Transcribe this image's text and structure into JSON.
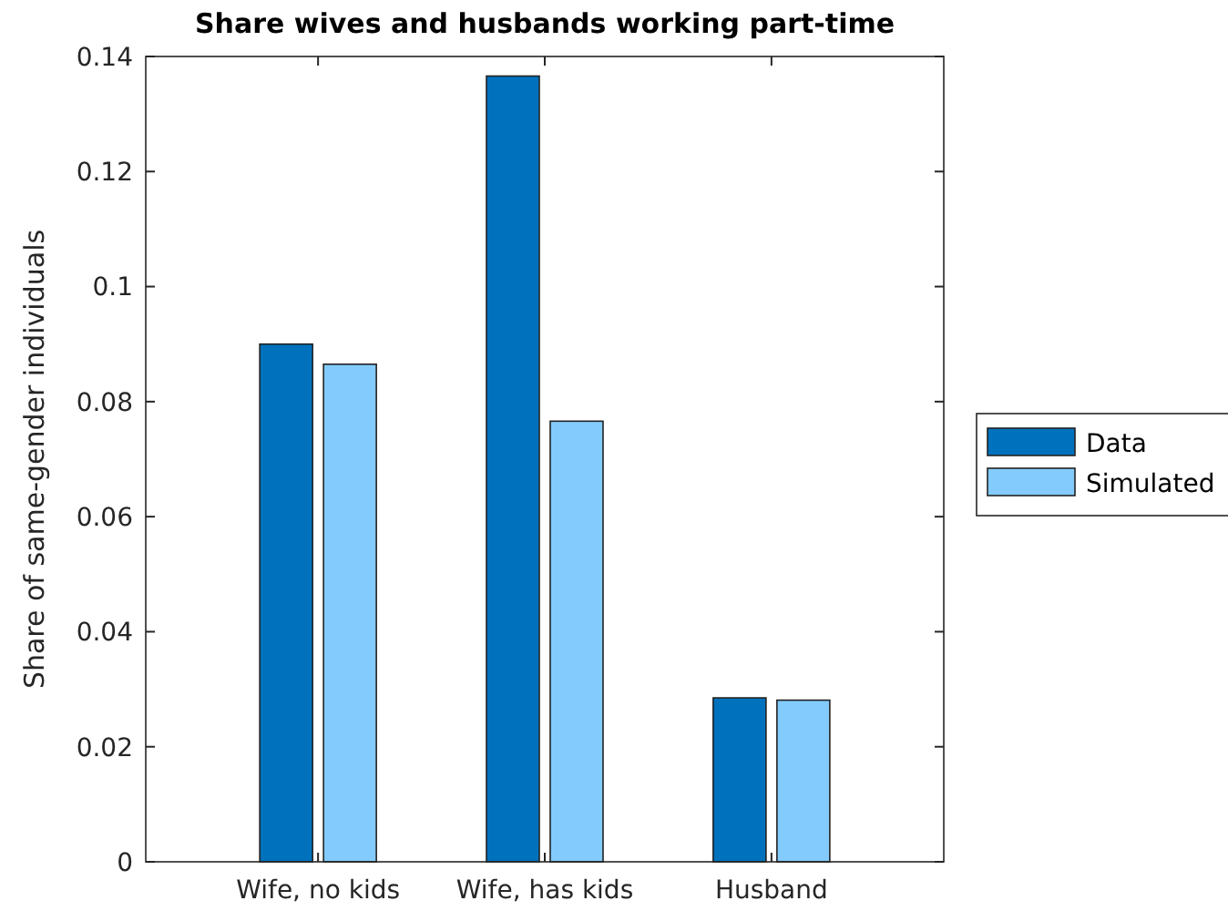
{
  "chart_data": {
    "type": "bar",
    "title": "Share wives and husbands working part-time",
    "ylabel": "Share of same-gender individuals",
    "categories": [
      "Wife, no kids",
      "Wife, has kids",
      "Husband"
    ],
    "series": [
      {
        "name": "Data",
        "color": "#0072bd",
        "values": [
          0.09,
          0.1366,
          0.0285
        ]
      },
      {
        "name": "Simulated",
        "color": "#83cbfc",
        "values": [
          0.0865,
          0.0766,
          0.0281
        ]
      }
    ],
    "ylim": [
      0,
      0.14
    ],
    "yticks": [
      0,
      0.02,
      0.04,
      0.06,
      0.08,
      0.1,
      0.12,
      0.14
    ],
    "grid": false,
    "legend": "right"
  }
}
